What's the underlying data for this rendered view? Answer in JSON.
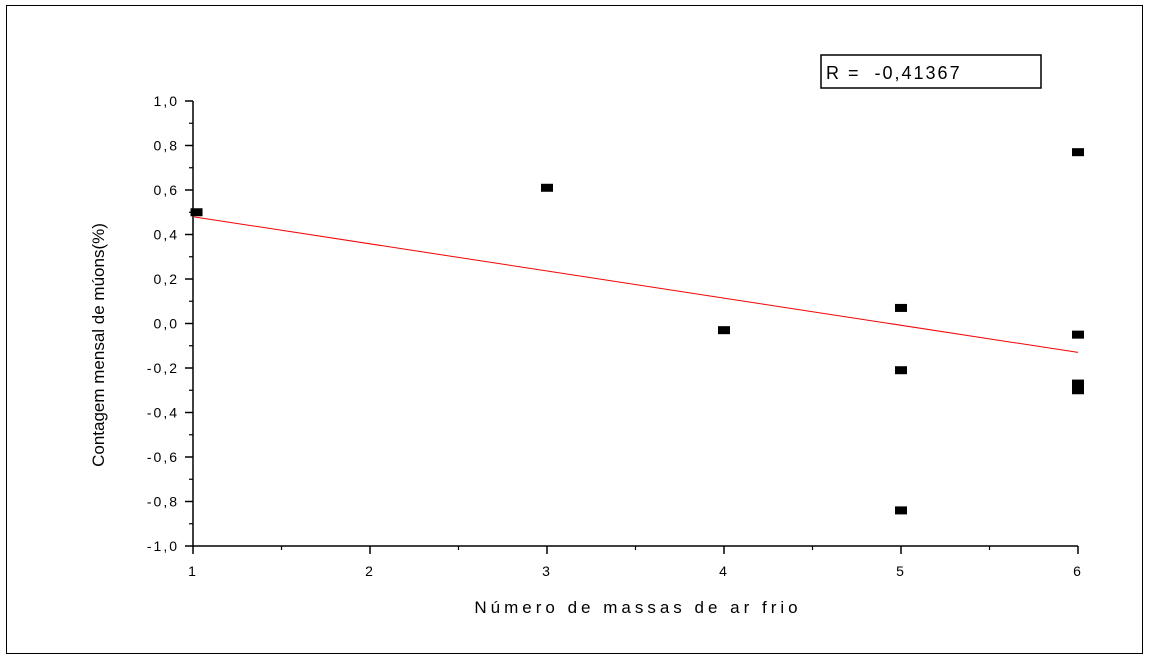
{
  "chart_data": {
    "type": "scatter",
    "xlabel": "Número de massas de ar frio",
    "ylabel": "Contagem mensal de múons(%)",
    "annotation": "R =  -0,41367",
    "xlim": [
      1,
      6
    ],
    "ylim": [
      -1.0,
      1.0
    ],
    "x_ticks": [
      1,
      2,
      3,
      4,
      5,
      6
    ],
    "x_tick_labels": [
      "1",
      "2",
      "3",
      "4",
      "5",
      "6"
    ],
    "y_ticks": [
      1.0,
      0.8,
      0.6,
      0.4,
      0.2,
      0.0,
      -0.2,
      -0.4,
      -0.6,
      -0.8,
      -1.0
    ],
    "y_tick_labels": [
      "1,0",
      "0,8",
      "0,6",
      "0,4",
      "0,2",
      "0,0",
      "-0,2",
      "-0,4",
      "-0,6",
      "-0,8",
      "-1,0"
    ],
    "points": [
      {
        "x": 1.02,
        "y": 0.5
      },
      {
        "x": 3.0,
        "y": 0.61
      },
      {
        "x": 4.0,
        "y": -0.03
      },
      {
        "x": 5.0,
        "y": 0.07
      },
      {
        "x": 5.0,
        "y": -0.21
      },
      {
        "x": 5.0,
        "y": -0.84
      },
      {
        "x": 6.0,
        "y": 0.77
      },
      {
        "x": 6.0,
        "y": -0.05
      },
      {
        "x": 6.0,
        "y": -0.27
      },
      {
        "x": 6.0,
        "y": -0.3
      }
    ],
    "fit_line": {
      "x": [
        1,
        6
      ],
      "y": [
        0.48,
        -0.13
      ]
    },
    "colors": {
      "points": "#000000",
      "fit_line": "#ff0000",
      "axes": "#000000"
    },
    "grid": false,
    "legend": "none"
  }
}
